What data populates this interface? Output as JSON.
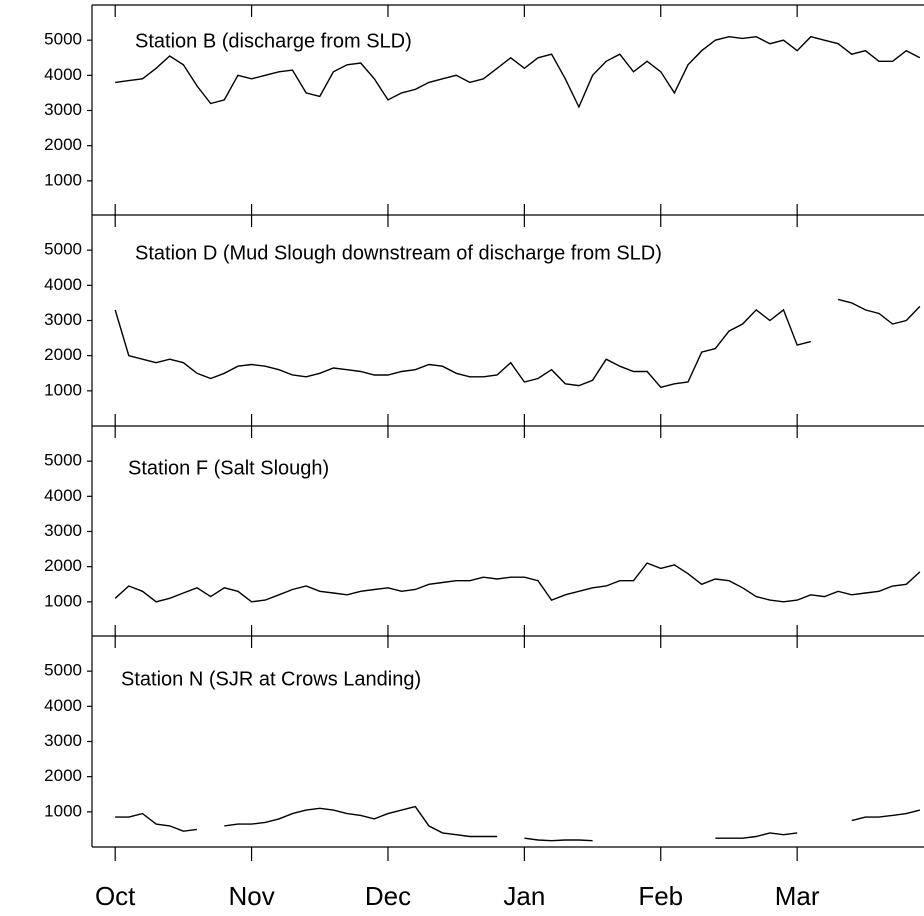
{
  "chart_data": [
    {
      "type": "line",
      "title": "Station B (discharge from SLD)",
      "color": "#000000",
      "xlim": [
        -0.17,
        5.93
      ],
      "xticks": [
        0,
        1,
        2,
        3,
        4,
        5
      ],
      "ylim": [
        0,
        6000
      ],
      "yticks": [
        1000,
        2000,
        3000,
        4000,
        5000
      ],
      "x": [
        0,
        0.1,
        0.2,
        0.3,
        0.4,
        0.5,
        0.6,
        0.7,
        0.8,
        0.9,
        1,
        1.1,
        1.2,
        1.3,
        1.4,
        1.5,
        1.6,
        1.7,
        1.8,
        1.9,
        2,
        2.1,
        2.2,
        2.3,
        2.4,
        2.5,
        2.6,
        2.7,
        2.8,
        2.9,
        3,
        3.1,
        3.2,
        3.3,
        3.4,
        3.5,
        3.6,
        3.7,
        3.8,
        3.9,
        4,
        4.1,
        4.2,
        4.3,
        4.4,
        4.5,
        4.6,
        4.7,
        4.8,
        4.9,
        5,
        5.1,
        5.2,
        5.3,
        5.4,
        5.5,
        5.6,
        5.7,
        5.8,
        5.9
      ],
      "values": [
        3800,
        3850,
        3900,
        4200,
        4550,
        4300,
        3700,
        3200,
        3300,
        4000,
        3900,
        4000,
        4100,
        4150,
        3500,
        3400,
        4100,
        4300,
        4350,
        3900,
        3300,
        3500,
        3600,
        3800,
        3900,
        4000,
        3800,
        3900,
        4200,
        4500,
        4200,
        4500,
        4600,
        3900,
        3100,
        4000,
        4400,
        4600,
        4100,
        4400,
        4100,
        3500,
        4300,
        4700,
        5000,
        5100,
        5050,
        5100,
        4900,
        5000,
        4700,
        5100,
        5000,
        4900,
        4600,
        4700,
        4400,
        4400,
        4700,
        4500
      ]
    },
    {
      "type": "line",
      "title": "Station D (Mud Slough downstream of discharge from SLD)",
      "color": "#000000",
      "xlim": [
        -0.17,
        5.93
      ],
      "xticks": [
        0,
        1,
        2,
        3,
        4,
        5
      ],
      "ylim": [
        0,
        6000
      ],
      "yticks": [
        1000,
        2000,
        3000,
        4000,
        5000
      ],
      "x": [
        0,
        0.1,
        0.2,
        0.3,
        0.4,
        0.5,
        0.6,
        0.7,
        0.8,
        0.9,
        1,
        1.1,
        1.2,
        1.3,
        1.4,
        1.5,
        1.6,
        1.7,
        1.8,
        1.9,
        2,
        2.1,
        2.2,
        2.3,
        2.4,
        2.5,
        2.6,
        2.7,
        2.8,
        2.9,
        3,
        3.1,
        3.2,
        3.3,
        3.4,
        3.5,
        3.6,
        3.7,
        3.8,
        3.9,
        4,
        4.1,
        4.2,
        4.3,
        4.4,
        4.5,
        4.6,
        4.7,
        4.8,
        4.9,
        5,
        5.1,
        5.2,
        5.3,
        5.4,
        5.5,
        5.6,
        5.7,
        5.8,
        5.9
      ],
      "values": [
        3300,
        2000,
        1900,
        1800,
        1900,
        1800,
        1500,
        1350,
        1500,
        1700,
        1750,
        1700,
        1600,
        1450,
        1400,
        1500,
        1650,
        1600,
        1550,
        1450,
        1450,
        1550,
        1600,
        1750,
        1700,
        1500,
        1400,
        1400,
        1450,
        1800,
        1250,
        1350,
        1600,
        1200,
        1150,
        1300,
        1900,
        1700,
        1550,
        1550,
        1100,
        1200,
        1250,
        2100,
        2200,
        2700,
        2900,
        3300,
        3000,
        3300,
        2300,
        2400,
        null,
        3600,
        3500,
        3300,
        3200,
        2900,
        3000,
        3400
      ]
    },
    {
      "type": "line",
      "title": "Station F (Salt Slough)",
      "color": "#000000",
      "xlim": [
        -0.17,
        5.93
      ],
      "xticks": [
        0,
        1,
        2,
        3,
        4,
        5
      ],
      "ylim": [
        0,
        6000
      ],
      "yticks": [
        1000,
        2000,
        3000,
        4000,
        5000
      ],
      "x": [
        0,
        0.1,
        0.2,
        0.3,
        0.4,
        0.5,
        0.6,
        0.7,
        0.8,
        0.9,
        1,
        1.1,
        1.2,
        1.3,
        1.4,
        1.5,
        1.6,
        1.7,
        1.8,
        1.9,
        2,
        2.1,
        2.2,
        2.3,
        2.4,
        2.5,
        2.6,
        2.7,
        2.8,
        2.9,
        3,
        3.1,
        3.2,
        3.3,
        3.4,
        3.5,
        3.6,
        3.7,
        3.8,
        3.9,
        4,
        4.1,
        4.2,
        4.3,
        4.4,
        4.5,
        4.6,
        4.7,
        4.8,
        4.9,
        5,
        5.1,
        5.2,
        5.3,
        5.4,
        5.5,
        5.6,
        5.7,
        5.8,
        5.9
      ],
      "values": [
        1100,
        1450,
        1300,
        1000,
        1100,
        1250,
        1400,
        1150,
        1400,
        1300,
        1000,
        1050,
        1200,
        1350,
        1450,
        1300,
        1250,
        1200,
        1300,
        1350,
        1400,
        1300,
        1350,
        1500,
        1550,
        1600,
        1600,
        1700,
        1650,
        1700,
        1700,
        1600,
        1050,
        1200,
        1300,
        1400,
        1450,
        1600,
        1600,
        2100,
        1950,
        2050,
        1800,
        1500,
        1650,
        1600,
        1400,
        1150,
        1050,
        1000,
        1050,
        1200,
        1150,
        1300,
        1200,
        1250,
        1300,
        1450,
        1500,
        1850
      ]
    },
    {
      "type": "line",
      "title": "Station N (SJR at Crows Landing)",
      "color": "#000000",
      "xlim": [
        -0.17,
        5.93
      ],
      "xticks": [
        {
          "value": 0,
          "label": "Oct"
        },
        {
          "value": 1,
          "label": "Nov"
        },
        {
          "value": 2,
          "label": "Dec"
        },
        {
          "value": 3,
          "label": "Jan"
        },
        {
          "value": 4,
          "label": "Feb"
        },
        {
          "value": 5,
          "label": "Mar"
        }
      ],
      "ylim": [
        0,
        6000
      ],
      "yticks": [
        1000,
        2000,
        3000,
        4000,
        5000
      ],
      "x": [
        0,
        0.1,
        0.2,
        0.3,
        0.4,
        0.5,
        0.6,
        0.7,
        0.8,
        0.9,
        1,
        1.1,
        1.2,
        1.3,
        1.4,
        1.5,
        1.6,
        1.7,
        1.8,
        1.9,
        2,
        2.1,
        2.2,
        2.3,
        2.4,
        2.5,
        2.6,
        2.7,
        2.8,
        2.9,
        3,
        3.1,
        3.2,
        3.3,
        3.4,
        3.5,
        3.6,
        3.7,
        3.8,
        3.9,
        4,
        4.1,
        4.2,
        4.3,
        4.4,
        4.5,
        4.6,
        4.7,
        4.8,
        4.9,
        5,
        5.1,
        5.2,
        5.3,
        5.4,
        5.5,
        5.6,
        5.7,
        5.8,
        5.9
      ],
      "values": [
        850,
        850,
        950,
        650,
        600,
        450,
        500,
        null,
        600,
        650,
        650,
        700,
        800,
        950,
        1050,
        1100,
        1050,
        950,
        900,
        800,
        950,
        1050,
        1150,
        600,
        400,
        350,
        300,
        300,
        300,
        null,
        250,
        200,
        180,
        200,
        200,
        180,
        null,
        null,
        null,
        null,
        null,
        null,
        null,
        null,
        250,
        250,
        250,
        300,
        400,
        350,
        400,
        null,
        null,
        null,
        750,
        850,
        850,
        900,
        950,
        1050
      ]
    }
  ]
}
